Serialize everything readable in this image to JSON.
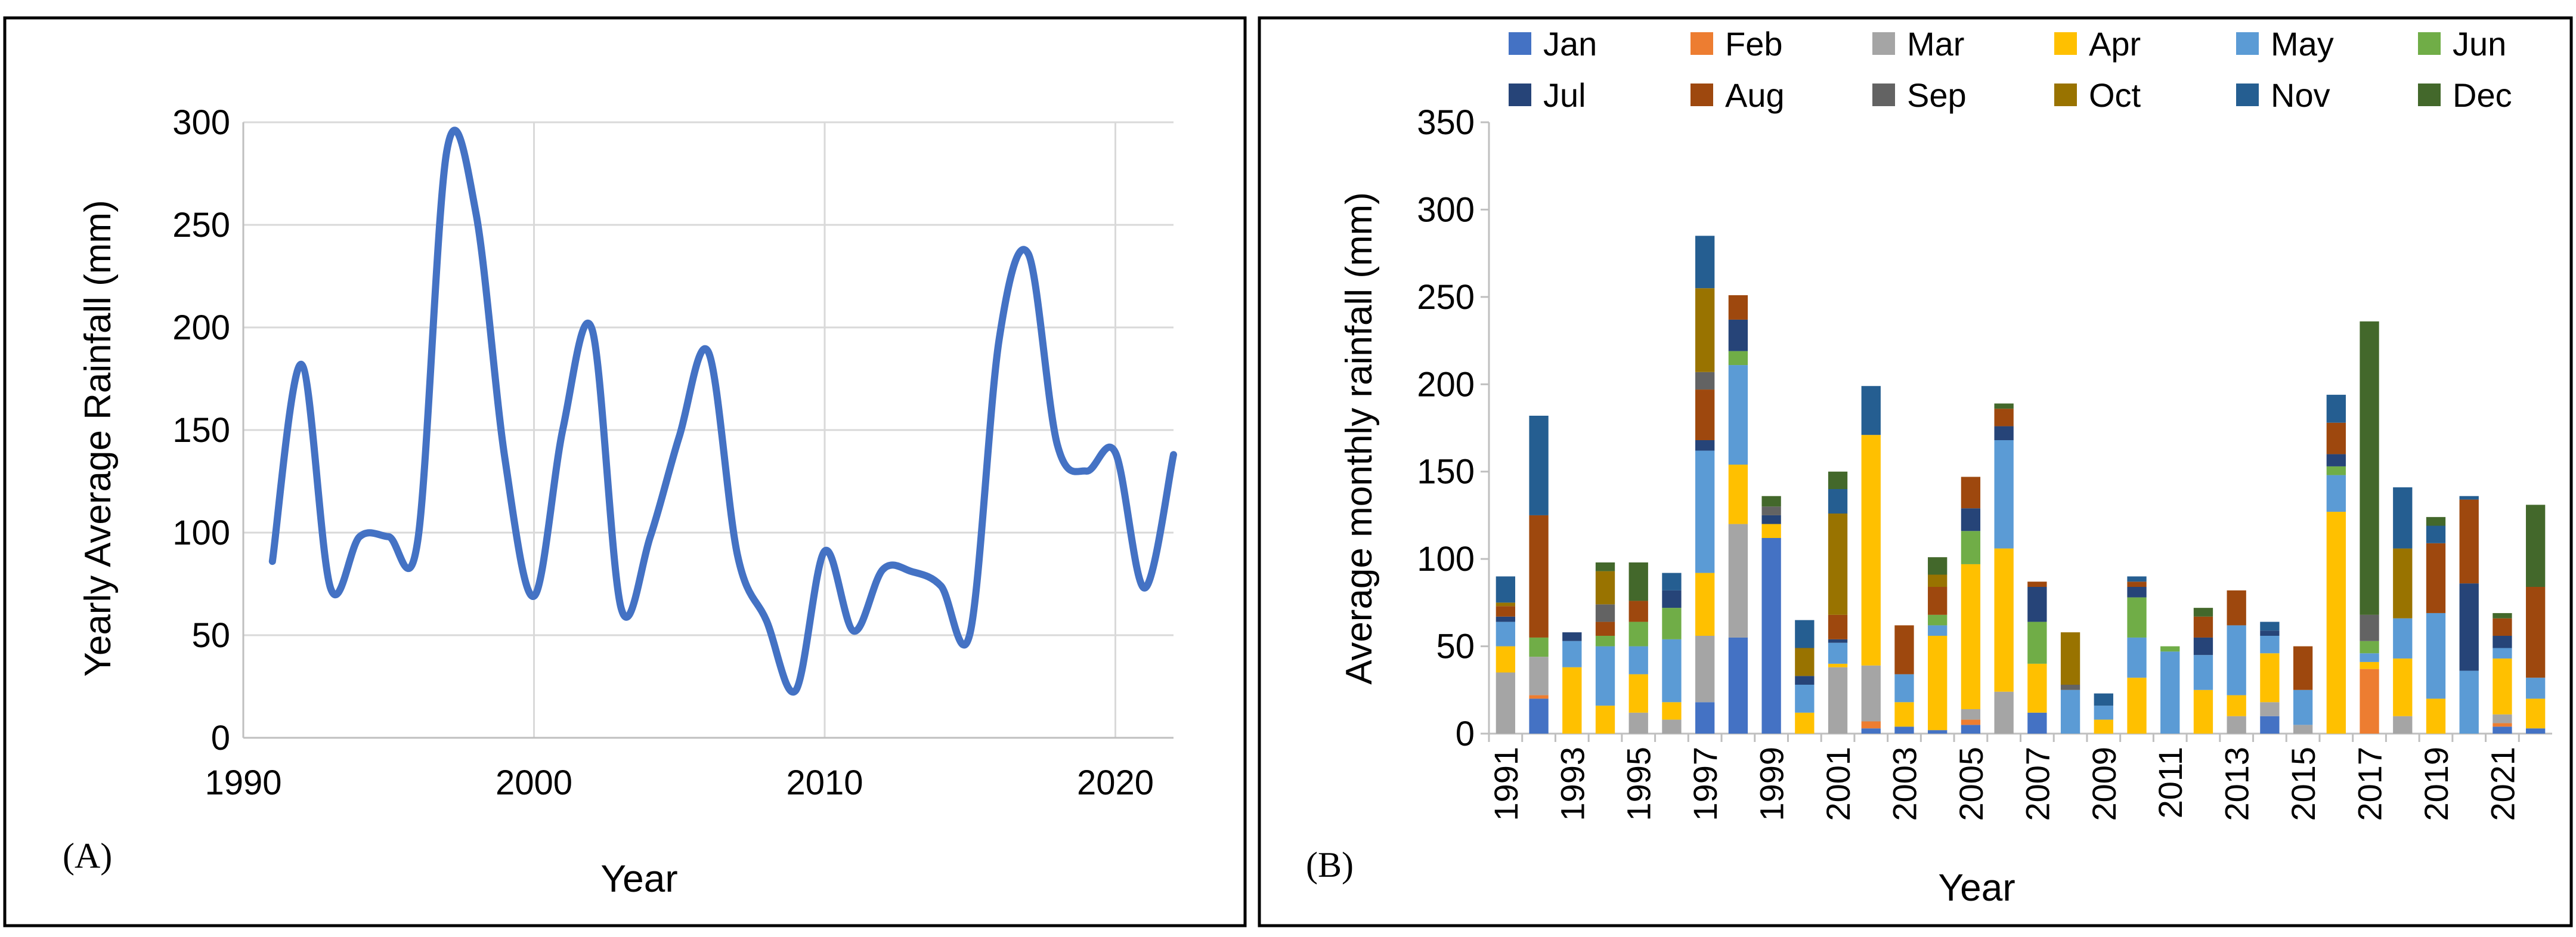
{
  "chart_data": [
    {
      "panel": "A",
      "type": "line",
      "panel_label": "(A)",
      "xlabel": "Year",
      "ylabel": "Yearly Average Rainfall (mm)",
      "xlim": [
        1990,
        2022
      ],
      "ylim": [
        0,
        300
      ],
      "x_ticks": [
        1990,
        2000,
        2010,
        2020
      ],
      "y_ticks": [
        0,
        50,
        100,
        150,
        200,
        250,
        300
      ],
      "grid": true,
      "line_color": "#4472C4",
      "x": [
        1991,
        1992,
        1993,
        1994,
        1995,
        1996,
        1997,
        1998,
        1999,
        2000,
        2001,
        2002,
        2003,
        2004,
        2005,
        2006,
        2007,
        2008,
        2009,
        2010,
        2011,
        2012,
        2013,
        2014,
        2015,
        2016,
        2017,
        2018,
        2019,
        2020,
        2021,
        2022
      ],
      "y": [
        86,
        182,
        73,
        98,
        98,
        96,
        286,
        256,
        136,
        69,
        151,
        199,
        63,
        98,
        147,
        188,
        89,
        57,
        23,
        91,
        52,
        82,
        81,
        74,
        51,
        194,
        236,
        143,
        130,
        139,
        73,
        138
      ]
    },
    {
      "panel": "B",
      "type": "bar",
      "stacked": true,
      "panel_label": "(B)",
      "xlabel": "Year",
      "ylabel": "Average monthly rainfall (mm)",
      "ylim": [
        0,
        350
      ],
      "y_ticks": [
        0,
        50,
        100,
        150,
        200,
        250,
        300,
        350
      ],
      "categories": [
        1991,
        1992,
        1993,
        1994,
        1995,
        1996,
        1997,
        1998,
        1999,
        2000,
        2001,
        2002,
        2003,
        2004,
        2005,
        2006,
        2007,
        2008,
        2009,
        2010,
        2011,
        2012,
        2013,
        2014,
        2015,
        2016,
        2017,
        2018,
        2019,
        2020,
        2021,
        2022
      ],
      "tick_labels": [
        "1991",
        "1993",
        "1995",
        "1997",
        "1999",
        "2001",
        "2003",
        "2005",
        "2007",
        "2009",
        "2011",
        "2013",
        "2015",
        "2017",
        "2019",
        "2021"
      ],
      "legend_position": "top",
      "series": [
        {
          "name": "Jan",
          "color": "#4472C4",
          "values": [
            0,
            20,
            0,
            0,
            0,
            0,
            18,
            55,
            112,
            0,
            0,
            3,
            4,
            2,
            5,
            0,
            12,
            0,
            0,
            0,
            0,
            0,
            0,
            10,
            0,
            0,
            0,
            0,
            0,
            0,
            4,
            3
          ]
        },
        {
          "name": "Feb",
          "color": "#ED7D31",
          "values": [
            0,
            2,
            0,
            0,
            0,
            0,
            0,
            0,
            0,
            0,
            0,
            4,
            0,
            0,
            3,
            0,
            0,
            0,
            0,
            0,
            0,
            0,
            0,
            0,
            0,
            0,
            37,
            0,
            0,
            0,
            2,
            0
          ]
        },
        {
          "name": "Mar",
          "color": "#A5A5A5",
          "values": [
            35,
            22,
            0,
            0,
            12,
            8,
            38,
            65,
            0,
            0,
            38,
            32,
            0,
            0,
            6,
            24,
            0,
            0,
            0,
            0,
            0,
            0,
            10,
            8,
            5,
            0,
            0,
            10,
            0,
            0,
            5,
            0
          ]
        },
        {
          "name": "Apr",
          "color": "#FFC000",
          "values": [
            15,
            0,
            38,
            16,
            22,
            10,
            36,
            34,
            8,
            12,
            2,
            132,
            14,
            54,
            83,
            82,
            28,
            0,
            8,
            32,
            0,
            25,
            12,
            28,
            0,
            127,
            4,
            33,
            20,
            0,
            32,
            17
          ]
        },
        {
          "name": "May",
          "color": "#5B9BD5",
          "values": [
            14,
            0,
            15,
            34,
            16,
            36,
            70,
            57,
            0,
            16,
            12,
            0,
            16,
            6,
            0,
            62,
            0,
            25,
            8,
            23,
            47,
            20,
            40,
            10,
            20,
            21,
            5,
            23,
            49,
            36,
            6,
            12
          ]
        },
        {
          "name": "Jun",
          "color": "#70AD47",
          "values": [
            0,
            11,
            0,
            6,
            14,
            18,
            0,
            8,
            0,
            0,
            0,
            0,
            0,
            6,
            19,
            0,
            24,
            0,
            0,
            23,
            3,
            0,
            0,
            0,
            0,
            5,
            7,
            0,
            0,
            0,
            0,
            0
          ]
        },
        {
          "name": "Jul",
          "color": "#264478",
          "values": [
            3,
            0,
            5,
            0,
            0,
            10,
            6,
            18,
            5,
            5,
            2,
            0,
            0,
            0,
            13,
            8,
            20,
            0,
            0,
            6,
            0,
            10,
            0,
            3,
            0,
            7,
            0,
            0,
            0,
            50,
            7,
            0
          ]
        },
        {
          "name": "Aug",
          "color": "#9E480E",
          "values": [
            6,
            70,
            0,
            8,
            12,
            0,
            29,
            14,
            0,
            0,
            14,
            0,
            28,
            16,
            18,
            10,
            3,
            0,
            0,
            3,
            0,
            12,
            20,
            0,
            25,
            18,
            0,
            0,
            40,
            48,
            10,
            52
          ]
        },
        {
          "name": "Sep",
          "color": "#636363",
          "values": [
            0,
            0,
            0,
            10,
            0,
            0,
            10,
            0,
            5,
            0,
            0,
            0,
            0,
            0,
            0,
            0,
            0,
            3,
            0,
            0,
            0,
            0,
            0,
            0,
            0,
            0,
            15,
            0,
            0,
            0,
            0,
            0
          ]
        },
        {
          "name": "Oct",
          "color": "#997300",
          "values": [
            2,
            0,
            0,
            19,
            0,
            0,
            48,
            0,
            0,
            16,
            58,
            0,
            0,
            7,
            0,
            0,
            0,
            30,
            0,
            0,
            0,
            0,
            0,
            0,
            0,
            0,
            0,
            40,
            0,
            0,
            0,
            0
          ]
        },
        {
          "name": "Nov",
          "color": "#255E91",
          "values": [
            15,
            57,
            0,
            0,
            0,
            10,
            30,
            0,
            0,
            16,
            14,
            28,
            0,
            0,
            0,
            0,
            0,
            0,
            7,
            3,
            0,
            0,
            0,
            5,
            0,
            16,
            0,
            35,
            10,
            2,
            0,
            0
          ]
        },
        {
          "name": "Dec",
          "color": "#43682B",
          "values": [
            0,
            0,
            0,
            5,
            22,
            0,
            0,
            0,
            6,
            0,
            10,
            0,
            0,
            10,
            0,
            3,
            0,
            0,
            0,
            0,
            0,
            5,
            0,
            0,
            0,
            0,
            168,
            0,
            5,
            0,
            3,
            47
          ]
        }
      ]
    }
  ]
}
